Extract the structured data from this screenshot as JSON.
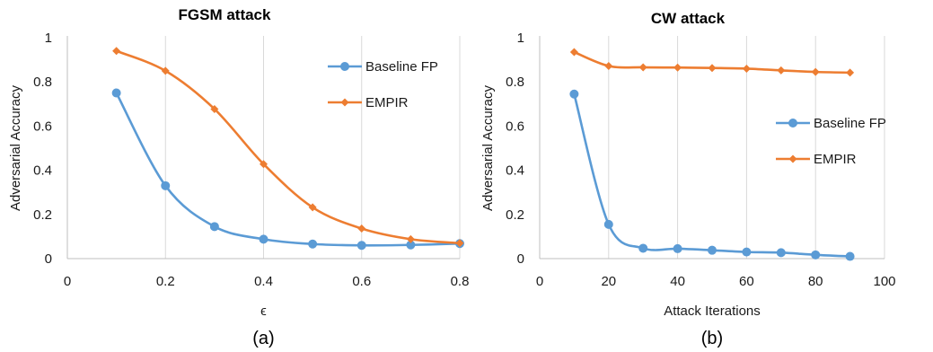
{
  "chart_data": [
    {
      "type": "line",
      "title": "FGSM attack",
      "xlabel": "ϵ",
      "ylabel": "Adversarial Accuracy",
      "xlim": [
        0,
        0.8
      ],
      "ylim": [
        0,
        1
      ],
      "xticks": [
        0,
        0.2,
        0.4,
        0.6,
        0.8
      ],
      "xtick_labels": [
        "0",
        "0.2",
        "0.4",
        "0.6",
        "0.8"
      ],
      "yticks": [
        0,
        0.2,
        0.4,
        0.6,
        0.8,
        1
      ],
      "ytick_labels": [
        "0",
        "0.2",
        "0.4",
        "0.6",
        "0.8",
        "1"
      ],
      "grid": "vertical",
      "legend_position": "top-right",
      "caption": "(a)",
      "series": [
        {
          "name": "Baseline FP",
          "color": "#5b9bd5",
          "marker": "circle",
          "x": [
            0.1,
            0.2,
            0.3,
            0.4,
            0.5,
            0.6,
            0.7,
            0.8
          ],
          "y": [
            0.75,
            0.33,
            0.145,
            0.088,
            0.066,
            0.06,
            0.062,
            0.068
          ]
        },
        {
          "name": "EMPIR",
          "color": "#ed7d31",
          "marker": "diamond",
          "x": [
            0.1,
            0.2,
            0.3,
            0.4,
            0.5,
            0.6,
            0.7,
            0.8
          ],
          "y": [
            0.94,
            0.85,
            0.677,
            0.428,
            0.232,
            0.136,
            0.088,
            0.07
          ]
        }
      ]
    },
    {
      "type": "line",
      "title": "CW attack",
      "xlabel": "Attack Iterations",
      "ylabel": "Adversarial Accuracy",
      "xlim": [
        0,
        100
      ],
      "ylim": [
        0,
        1
      ],
      "xticks": [
        0,
        20,
        40,
        60,
        80,
        100
      ],
      "xtick_labels": [
        "0",
        "20",
        "40",
        "60",
        "80",
        "100"
      ],
      "yticks": [
        0,
        0.2,
        0.4,
        0.6,
        0.8,
        1
      ],
      "ytick_labels": [
        "0",
        "0.2",
        "0.4",
        "0.6",
        "0.8",
        "1"
      ],
      "grid": "vertical",
      "legend_position": "right",
      "caption": "(b)",
      "series": [
        {
          "name": "Baseline FP",
          "color": "#5b9bd5",
          "marker": "circle",
          "x": [
            10,
            20,
            30,
            40,
            50,
            60,
            70,
            80,
            90
          ],
          "y": [
            0.745,
            0.155,
            0.047,
            0.045,
            0.038,
            0.03,
            0.027,
            0.017,
            0.01
          ]
        },
        {
          "name": "EMPIR",
          "color": "#ed7d31",
          "marker": "diamond",
          "x": [
            10,
            20,
            30,
            40,
            50,
            60,
            70,
            80,
            90
          ],
          "y": [
            0.935,
            0.872,
            0.866,
            0.865,
            0.863,
            0.86,
            0.852,
            0.845,
            0.842
          ]
        }
      ]
    }
  ]
}
